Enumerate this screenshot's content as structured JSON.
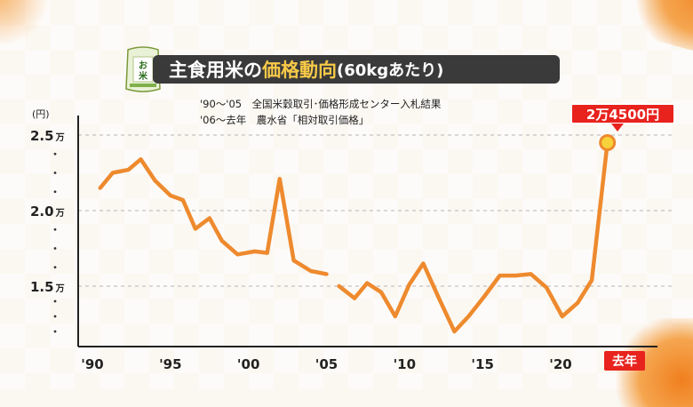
{
  "title": {
    "main": "主食用米の",
    "accent": "価格動向",
    "sub": "(60kgあたり)"
  },
  "icon": {
    "name": "rice-bag-icon",
    "label": "お米"
  },
  "source_notes": [
    "'90〜'05　全国米穀取引･価格形成センター入札結果",
    "'06〜去年　農水省「相対取引価格」"
  ],
  "callout": {
    "label": "2万4500円"
  },
  "last_year_label": "去年",
  "colors": {
    "line": "#ee8a2e",
    "title_bg": "#3a3a3a",
    "accent": "#f7c948",
    "callout_red": "#e8231e",
    "marker_fill": "#f7d23a",
    "grid": "#b5b5b5"
  },
  "chart_data": {
    "type": "line",
    "ylabel": "(円)",
    "ylim": [
      12000,
      25500
    ],
    "y_ticks": [
      {
        "value": 25000,
        "num": "2.5",
        "unit": "万"
      },
      {
        "value": 20000,
        "num": "2.0",
        "unit": "万"
      },
      {
        "value": 15000,
        "num": "1.5",
        "unit": "万"
      }
    ],
    "x_range": [
      1990,
      2024
    ],
    "x_ticks": [
      {
        "value": 1990,
        "label": "'90"
      },
      {
        "value": 1995,
        "label": "'95"
      },
      {
        "value": 2000,
        "label": "'00"
      },
      {
        "value": 2005,
        "label": "'05"
      },
      {
        "value": 2010,
        "label": "'10"
      },
      {
        "value": 2015,
        "label": "'15"
      },
      {
        "value": 2020,
        "label": "'20"
      }
    ],
    "grid": "horizontal dashed",
    "series": [
      {
        "segment": "1990-2006",
        "points": [
          [
            1990.5,
            21500
          ],
          [
            1991.3,
            22500
          ],
          [
            1992.3,
            22700
          ],
          [
            1993.1,
            23400
          ],
          [
            1994.0,
            22000
          ],
          [
            1995.0,
            21000
          ],
          [
            1995.8,
            20700
          ],
          [
            1996.6,
            18800
          ],
          [
            1997.5,
            19500
          ],
          [
            1998.3,
            18000
          ],
          [
            1999.3,
            17100
          ],
          [
            2000.4,
            17300
          ],
          [
            2001.2,
            17200
          ],
          [
            2002.0,
            22100
          ],
          [
            2002.9,
            16700
          ],
          [
            2004.0,
            16000
          ],
          [
            2005.0,
            15800
          ]
        ]
      },
      {
        "segment": "2006-last year",
        "points": [
          [
            2005.8,
            15000
          ],
          [
            2006.8,
            14200
          ],
          [
            2007.6,
            15200
          ],
          [
            2008.5,
            14600
          ],
          [
            2009.4,
            13000
          ],
          [
            2010.3,
            15100
          ],
          [
            2011.2,
            16500
          ],
          [
            2012.2,
            14200
          ],
          [
            2013.2,
            12000
          ],
          [
            2014.1,
            13000
          ],
          [
            2015.1,
            14300
          ],
          [
            2016.1,
            15700
          ],
          [
            2017.1,
            15700
          ],
          [
            2018.1,
            15800
          ],
          [
            2019.1,
            14900
          ],
          [
            2020.1,
            13000
          ],
          [
            2021.1,
            13900
          ],
          [
            2022.0,
            15400
          ],
          [
            2023.0,
            24500
          ]
        ]
      }
    ],
    "peak_marker": {
      "x": 2023.0,
      "y": 24500
    }
  }
}
